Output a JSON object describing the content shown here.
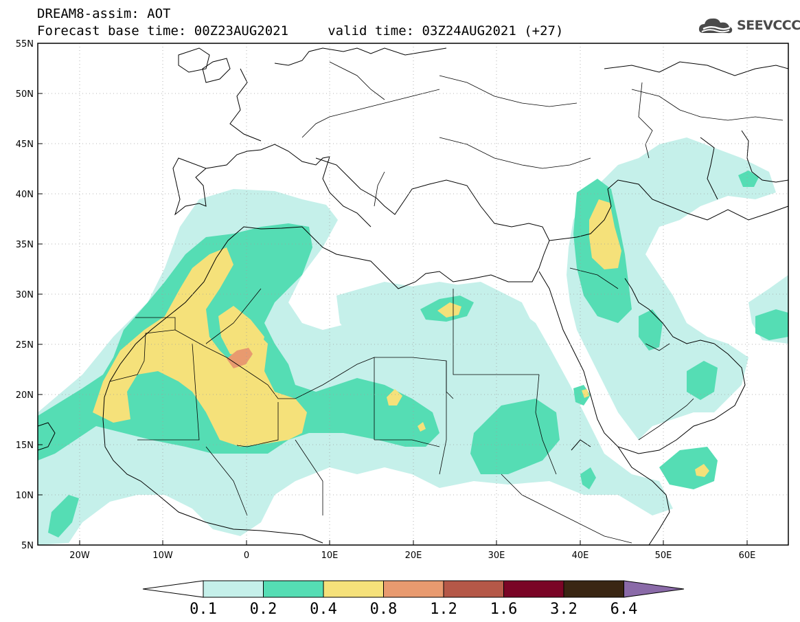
{
  "header": {
    "model_title": "DREAM8-assim: AOT",
    "forecast_line": "Forecast base time: 00Z23AUG2021     valid time: 03Z24AUG2021 (+27)"
  },
  "logo": {
    "text": "SEEVCCC",
    "icon": "cloud-icon"
  },
  "axes": {
    "lat_labels": [
      "55N",
      "50N",
      "45N",
      "40N",
      "35N",
      "30N",
      "25N",
      "20N",
      "15N",
      "10N",
      "5N"
    ],
    "lon_labels": [
      "20W",
      "10W",
      "0",
      "10E",
      "20E",
      "30E",
      "40E",
      "50E",
      "60E"
    ],
    "lat_values": [
      55,
      50,
      45,
      40,
      35,
      30,
      25,
      20,
      15,
      10,
      5
    ],
    "lon_values": [
      -20,
      -10,
      0,
      10,
      20,
      30,
      40,
      50,
      60
    ],
    "lat_range": [
      5,
      55
    ],
    "lon_range": [
      -25,
      65
    ]
  },
  "colorbar": {
    "labels": [
      "0.1",
      "0.2",
      "0.4",
      "0.8",
      "1.2",
      "1.6",
      "3.2",
      "6.4"
    ],
    "colors": [
      "#ffffff",
      "#c5f0ea",
      "#55ddb4",
      "#f5e17a",
      "#e89a6f",
      "#b55848",
      "#7a0526",
      "#3a2613",
      "#8a6aa8"
    ]
  }
}
